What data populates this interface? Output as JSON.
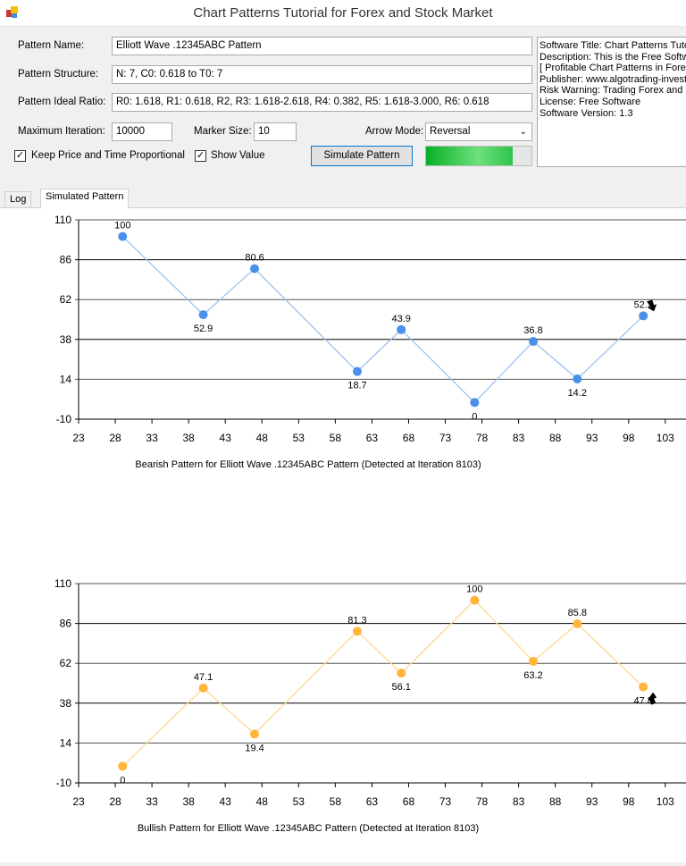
{
  "window": {
    "title": "Chart Patterns Tutorial for Forex and Stock Market"
  },
  "form": {
    "pattern_name_label": "Pattern Name:",
    "pattern_name": "Elliott Wave .12345ABC Pattern",
    "pattern_structure_label": "Pattern Structure:",
    "pattern_structure": "N: 7, C0: 0.618 to T0: 7",
    "pattern_ratio_label": "Pattern Ideal Ratio:",
    "pattern_ratio": "R0: 1.618, R1: 0.618, R2, R3: 1.618-2.618, R4: 0.382, R5: 1.618-3.000, R6: 0.618",
    "max_iter_label": "Maximum Iteration:",
    "max_iter": "10000",
    "marker_size_label": "Marker Size:",
    "marker_size": "10",
    "arrow_mode_label": "Arrow Mode:",
    "arrow_mode": "Reversal",
    "keep_proportional_label": "Keep Price and Time Proportional",
    "keep_proportional": true,
    "show_value_label": "Show Value",
    "show_value": true,
    "simulate_label": "Simulate Pattern",
    "progress_percent": 82
  },
  "info_lines": [
    "Software Title: Chart Patterns Tutorial",
    "Description: This is the Free Software",
    "[ Profitable Chart Patterns in Forex and",
    "Publisher: www.algotrading-investment",
    "Risk Warning: Trading Forex and Stock",
    "License: Free Software",
    "Software Version: 1.3"
  ],
  "tabs": [
    {
      "label": "Log",
      "active": false
    },
    {
      "label": "Simulated Pattern",
      "active": true
    }
  ],
  "chart_data": [
    {
      "type": "line",
      "title": "Bearish Pattern for Elliott Wave .12345ABC Pattern (Detected at Iteration 8103)",
      "color": "#4a90e8",
      "line_color": "#9ec2f0",
      "x": [
        29,
        40,
        47,
        61,
        67,
        77,
        85,
        91,
        100
      ],
      "y": [
        100,
        52.9,
        80.6,
        18.7,
        43.9,
        0,
        36.8,
        14.2,
        52.2
      ],
      "labels": [
        "100",
        "52.9",
        "80.6",
        "18.7",
        "43.9",
        "0",
        "36.8",
        "14.2",
        "52.2"
      ],
      "label_pos": [
        "above",
        "below",
        "above",
        "below",
        "above",
        "below",
        "above",
        "below",
        "above"
      ],
      "ylim": [
        -10,
        110
      ],
      "yticks": [
        "110",
        "86",
        "62",
        "38",
        "14",
        "-10"
      ],
      "xticks": [
        "23",
        "28",
        "33",
        "38",
        "43",
        "48",
        "53",
        "58",
        "63",
        "68",
        "73",
        "78",
        "83",
        "88",
        "93",
        "98",
        "103"
      ],
      "grid": true,
      "arrow": "down"
    },
    {
      "type": "line",
      "title": "Bullish Pattern for Elliott Wave .12345ABC Pattern (Detected at Iteration 8103)",
      "color": "#ffb53a",
      "line_color": "#ffd890",
      "x": [
        29,
        40,
        47,
        61,
        67,
        77,
        85,
        91,
        100
      ],
      "y": [
        0,
        47.1,
        19.4,
        81.3,
        56.1,
        100,
        63.2,
        85.8,
        47.8
      ],
      "labels": [
        "0",
        "47.1",
        "19.4",
        "81.3",
        "56.1",
        "100",
        "63.2",
        "85.8",
        "47.8"
      ],
      "label_pos": [
        "below",
        "above",
        "below",
        "above",
        "below",
        "above",
        "below",
        "above",
        "below"
      ],
      "ylim": [
        -10,
        110
      ],
      "yticks": [
        "110",
        "86",
        "62",
        "38",
        "14",
        "-10"
      ],
      "xticks": [
        "23",
        "28",
        "33",
        "38",
        "43",
        "48",
        "53",
        "58",
        "63",
        "68",
        "73",
        "78",
        "83",
        "88",
        "93",
        "98",
        "103"
      ],
      "grid": true,
      "arrow": "up"
    }
  ]
}
